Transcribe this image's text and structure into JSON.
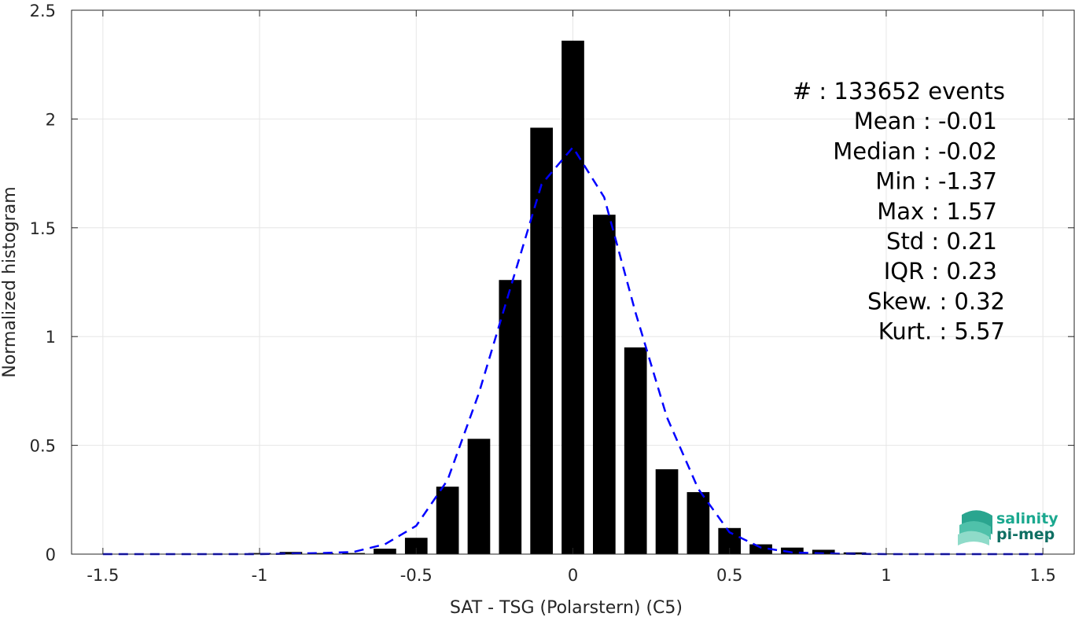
{
  "chart_data": {
    "type": "bar",
    "xlabel": "SAT - TSG (Polarstern) (C5)",
    "ylabel": "Normalized histogram",
    "xlim": [
      -1.6,
      1.6
    ],
    "ylim": [
      0,
      2.5
    ],
    "x_ticks": [
      "-1.5",
      "-1",
      "-0.5",
      "0",
      "0.5",
      "1",
      "1.5"
    ],
    "y_ticks": [
      "0",
      "0.5",
      "1",
      "1.5",
      "2",
      "2.5"
    ],
    "grid": true,
    "bar_color": "#000000",
    "fit_color": "#0000ff",
    "bars": {
      "x": [
        -1.5,
        -1.4,
        -1.3,
        -1.2,
        -1.1,
        -1.0,
        -0.9,
        -0.8,
        -0.7,
        -0.6,
        -0.5,
        -0.4,
        -0.3,
        -0.2,
        -0.1,
        0.0,
        0.1,
        0.2,
        0.3,
        0.4,
        0.5,
        0.6,
        0.7,
        0.8,
        0.9,
        1.0,
        1.1,
        1.2,
        1.3,
        1.4,
        1.5
      ],
      "values": [
        0,
        0,
        0,
        0,
        0,
        0.005,
        0.01,
        0.005,
        0.005,
        0.025,
        0.075,
        0.31,
        0.53,
        1.26,
        1.96,
        2.36,
        1.56,
        0.95,
        0.39,
        0.285,
        0.12,
        0.045,
        0.03,
        0.02,
        0.008,
        0.003,
        0.001,
        0,
        0,
        0,
        0
      ]
    },
    "fit_curve": {
      "style": "dashed",
      "x": [
        -1.5,
        -1.4,
        -1.3,
        -1.2,
        -1.1,
        -1.0,
        -0.9,
        -0.8,
        -0.7,
        -0.6,
        -0.5,
        -0.4,
        -0.3,
        -0.2,
        -0.1,
        0.0,
        0.1,
        0.2,
        0.3,
        0.4,
        0.5,
        0.6,
        0.7,
        0.8,
        0.9,
        1.0,
        1.1,
        1.2,
        1.3,
        1.4,
        1.5
      ],
      "values": [
        0,
        0,
        0,
        0,
        0,
        0,
        0.002,
        0.005,
        0.01,
        0.045,
        0.13,
        0.34,
        0.74,
        1.22,
        1.7,
        1.87,
        1.64,
        1.11,
        0.63,
        0.3,
        0.1,
        0.03,
        0.008,
        0.003,
        0.001,
        0,
        0,
        0,
        0,
        0,
        0
      ]
    }
  },
  "stats": [
    "#  : 133652 events",
    "Mean : -0.01",
    "Median : -0.02",
    "Min : -1.37",
    "Max : 1.57",
    "Std : 0.21",
    "IQR : 0.23",
    "Skew. : 0.32",
    "Kurt. : 5.57"
  ],
  "logo": {
    "line1": "salinity",
    "line2": "pi-mep",
    "color1": "#1ba88f",
    "color2": "#0f6f63"
  }
}
